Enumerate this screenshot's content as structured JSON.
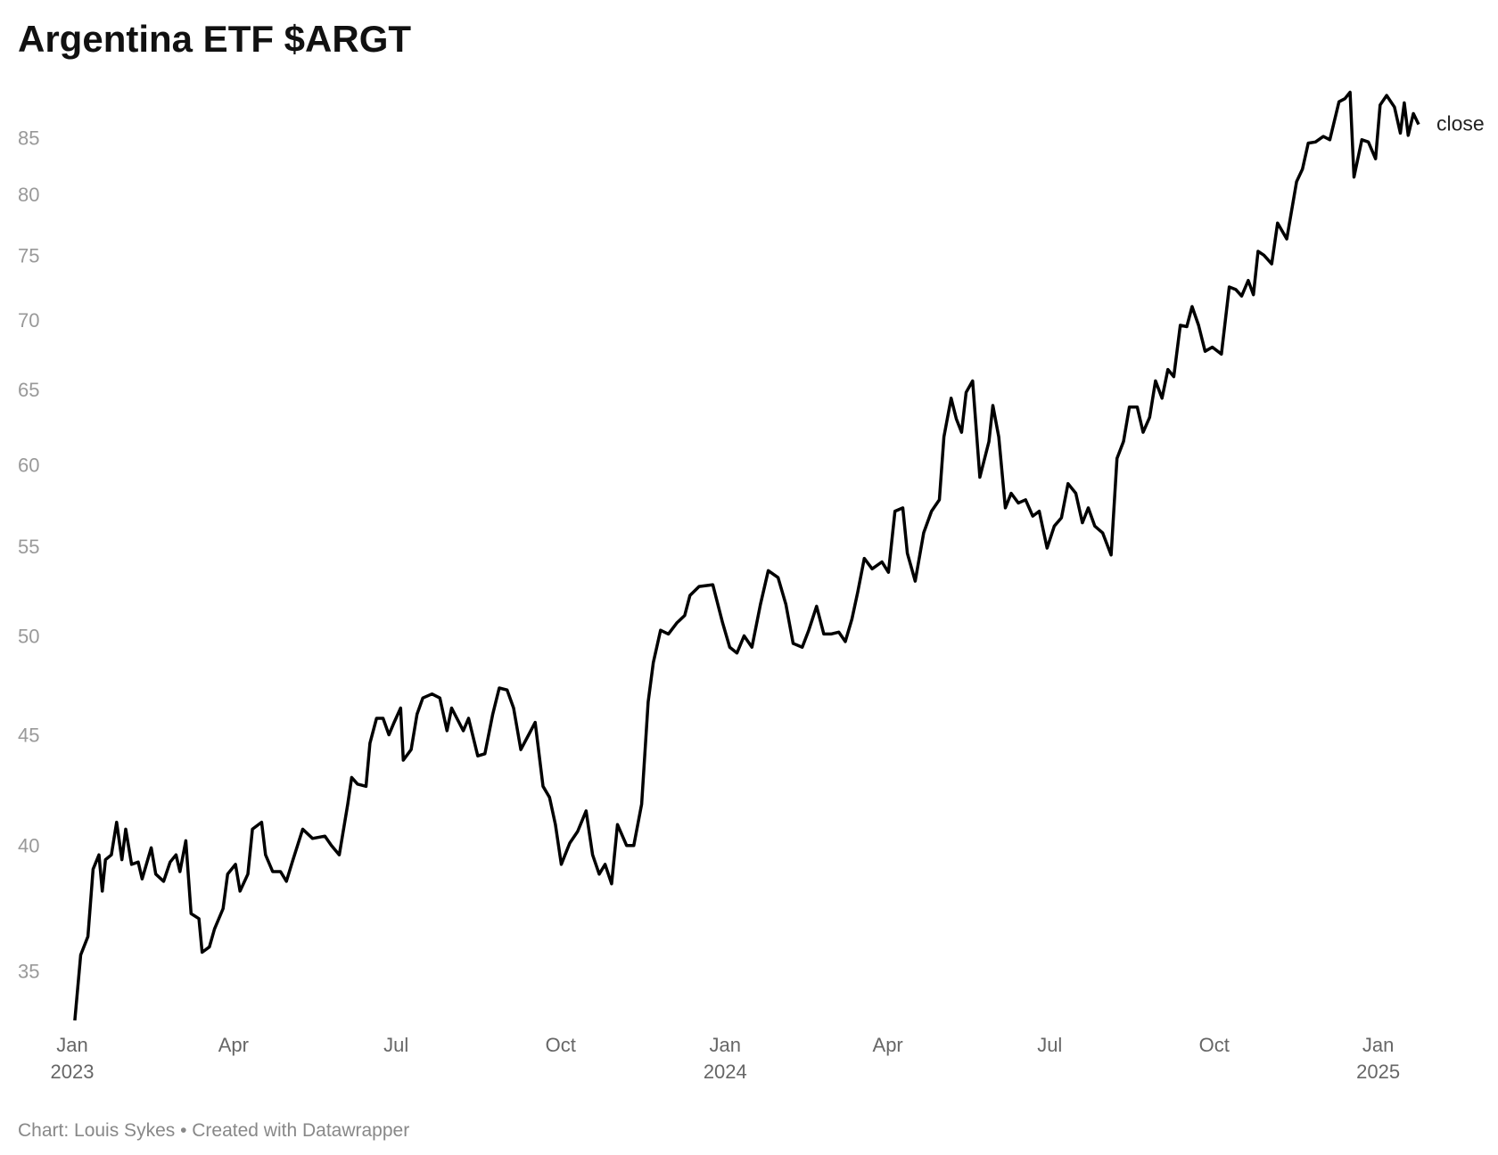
{
  "chart_data": {
    "type": "line",
    "title": "Argentina ETF $ARGT",
    "source": "Chart: Louis Sykes • Created with Datawrapper",
    "x": [
      2023.004,
      2023.013,
      2023.024,
      2023.032,
      2023.041,
      2023.046,
      2023.051,
      2023.06,
      2023.068,
      2023.076,
      2023.082,
      2023.091,
      2023.101,
      2023.107,
      2023.121,
      2023.128,
      2023.14,
      2023.15,
      2023.159,
      2023.165,
      2023.174,
      2023.182,
      2023.194,
      2023.199,
      2023.21,
      2023.218,
      2023.231,
      2023.238,
      2023.25,
      2023.257,
      2023.269,
      2023.276,
      2023.29,
      2023.296,
      2023.307,
      2023.319,
      2023.328,
      2023.337,
      2023.353,
      2023.368,
      2023.387,
      2023.397,
      2023.409,
      2023.422,
      2023.428,
      2023.437,
      2023.45,
      2023.456,
      2023.466,
      2023.476,
      2023.485,
      2023.493,
      2023.503,
      2023.507,
      2023.519,
      2023.528,
      2023.537,
      2023.551,
      2023.563,
      2023.574,
      2023.581,
      2023.599,
      2023.607,
      2023.621,
      2023.632,
      2023.644,
      2023.654,
      2023.666,
      2023.676,
      2023.687,
      2023.699,
      2023.709,
      2023.721,
      2023.731,
      2023.74,
      2023.749,
      2023.762,
      2023.774,
      2023.787,
      2023.797,
      2023.807,
      2023.816,
      2023.826,
      2023.835,
      2023.849,
      2023.86,
      2023.872,
      2023.882,
      2023.89,
      2023.901,
      2023.913,
      2023.926,
      2023.938,
      2023.946,
      2023.96,
      2023.981,
      2023.996,
      2024.007,
      2024.018,
      2024.029,
      2024.041,
      2024.054,
      2024.066,
      2024.081,
      2024.093,
      2024.104,
      2024.118,
      2024.128,
      2024.14,
      2024.151,
      2024.162,
      2024.174,
      2024.184,
      2024.194,
      2024.203,
      2024.213,
      2024.225,
      2024.24,
      2024.25,
      2024.26,
      2024.272,
      2024.279,
      2024.291,
      2024.304,
      2024.316,
      2024.328,
      2024.335,
      2024.346,
      2024.354,
      2024.362,
      2024.369,
      2024.379,
      2024.39,
      2024.404,
      2024.41,
      2024.419,
      2024.429,
      2024.438,
      2024.449,
      2024.46,
      2024.471,
      2024.481,
      2024.493,
      2024.504,
      2024.515,
      2024.525,
      2024.537,
      2024.547,
      2024.556,
      2024.566,
      2024.578,
      2024.591,
      2024.6,
      2024.61,
      2024.619,
      2024.631,
      2024.64,
      2024.65,
      2024.659,
      2024.669,
      2024.678,
      2024.687,
      2024.697,
      2024.707,
      2024.715,
      2024.725,
      2024.735,
      2024.746,
      2024.76,
      2024.772,
      2024.782,
      2024.791,
      2024.801,
      2024.809,
      2024.816,
      2024.825,
      2024.837,
      2024.846,
      2024.86,
      2024.875,
      2024.884,
      2024.893,
      2024.904,
      2024.916,
      2024.926,
      2024.94,
      2024.949,
      2024.957,
      2024.963,
      2024.975,
      2024.985,
      2024.996,
      2025.003,
      2025.013,
      2025.025,
      2025.034,
      2025.04,
      2025.046,
      2025.054,
      2025.062
    ],
    "series": [
      {
        "name": "close",
        "color": "#000000",
        "values": [
          33.2,
          35.6,
          36.3,
          39.0,
          39.6,
          38.1,
          39.4,
          39.6,
          41.0,
          39.4,
          40.7,
          39.2,
          39.3,
          38.6,
          39.9,
          38.8,
          38.5,
          39.3,
          39.6,
          38.9,
          40.2,
          37.2,
          37.0,
          35.7,
          35.9,
          36.6,
          37.4,
          38.8,
          39.2,
          38.1,
          38.8,
          40.7,
          41.0,
          39.6,
          38.9,
          38.9,
          38.5,
          39.3,
          40.7,
          40.3,
          40.4,
          40.0,
          39.6,
          41.8,
          43.0,
          42.7,
          42.6,
          44.6,
          45.8,
          45.8,
          45.0,
          45.6,
          46.3,
          43.8,
          44.3,
          46.0,
          46.8,
          47.0,
          46.8,
          45.2,
          46.3,
          45.2,
          45.8,
          44.0,
          44.1,
          46.0,
          47.3,
          47.2,
          46.3,
          44.3,
          45.0,
          45.6,
          42.6,
          42.1,
          40.9,
          39.2,
          40.1,
          40.6,
          41.5,
          39.6,
          38.8,
          39.2,
          38.4,
          40.9,
          40.0,
          40.0,
          41.8,
          46.6,
          48.6,
          50.3,
          50.1,
          50.7,
          51.1,
          52.2,
          52.7,
          52.8,
          50.7,
          49.4,
          49.1,
          50.0,
          49.4,
          51.7,
          53.6,
          53.2,
          51.7,
          49.6,
          49.4,
          50.3,
          51.6,
          50.1,
          50.1,
          50.2,
          49.7,
          50.9,
          52.4,
          54.3,
          53.7,
          54.1,
          53.5,
          57.1,
          57.3,
          54.6,
          53.0,
          55.8,
          57.1,
          57.8,
          61.8,
          64.4,
          63.0,
          62.1,
          64.8,
          65.6,
          59.2,
          61.5,
          63.9,
          61.8,
          57.3,
          58.2,
          57.6,
          57.8,
          56.8,
          57.1,
          54.9,
          56.2,
          56.7,
          58.8,
          58.2,
          56.4,
          57.3,
          56.2,
          55.8,
          54.5,
          60.4,
          61.5,
          63.8,
          63.8,
          62.1,
          63.1,
          65.6,
          64.4,
          66.4,
          65.9,
          69.6,
          69.5,
          71.0,
          69.6,
          67.7,
          68.0,
          67.5,
          72.5,
          72.3,
          71.8,
          73.0,
          71.9,
          75.3,
          75.0,
          74.3,
          77.6,
          76.3,
          81.1,
          82.2,
          84.5,
          84.6,
          85.1,
          84.8,
          88.3,
          88.6,
          89.2,
          81.5,
          84.8,
          84.6,
          83.1,
          88.0,
          88.9,
          87.8,
          85.4,
          88.2,
          85.2,
          87.2,
          86.2
        ]
      }
    ],
    "xlim": [
      2023,
      2025.062
    ],
    "xticks": [
      {
        "value": 2023.0,
        "label": "Jan 2023"
      },
      {
        "value": 2023.247,
        "label": "Apr"
      },
      {
        "value": 2023.496,
        "label": "Jul"
      },
      {
        "value": 2023.748,
        "label": "Oct"
      },
      {
        "value": 2024.0,
        "label": "Jan 2024"
      },
      {
        "value": 2024.249,
        "label": "Apr"
      },
      {
        "value": 2024.497,
        "label": "Jul"
      },
      {
        "value": 2024.749,
        "label": "Oct"
      },
      {
        "value": 2025.0,
        "label": "Jan 2025"
      }
    ],
    "ylim": [
      33.2,
      89.5
    ],
    "yticks": [
      35,
      40,
      45,
      50,
      55,
      60,
      65,
      70,
      75,
      80,
      85
    ],
    "log_y": true,
    "grid": false
  }
}
